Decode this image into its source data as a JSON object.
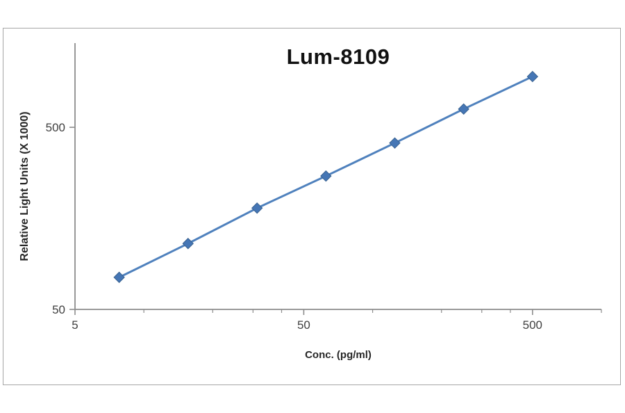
{
  "chart": {
    "title": "Lum-8109",
    "x_axis_label": "Conc. (pg/ml)",
    "y_axis_label": "Relative Light Units (X 1000)"
  },
  "chart_data": {
    "type": "line",
    "title": "Lum-8109",
    "xlabel": "Conc. (pg/ml)",
    "ylabel": "Relative Light Units (X 1000)",
    "x_scale": "log",
    "y_scale": "log",
    "x": [
      7.8,
      15.6,
      31.25,
      62.5,
      125,
      250,
      500
    ],
    "y": [
      75,
      115,
      180,
      270,
      410,
      630,
      950
    ],
    "xlim": [
      5,
      1000
    ],
    "ylim": [
      50,
      1450
    ],
    "x_major_ticks": [
      5,
      50,
      500
    ],
    "x_tick_labels": [
      "5",
      "50",
      "500"
    ],
    "x_minor_ticks": [
      10,
      20,
      30,
      40,
      100,
      200,
      300,
      400,
      1000
    ],
    "y_major_ticks": [
      50,
      500
    ],
    "y_tick_labels": [
      "50",
      "500"
    ],
    "grid": false,
    "legend": false,
    "marker": "diamond",
    "line_color": "#4f81bd",
    "marker_color": "#4576b5",
    "marker_edge_color": "#38618f",
    "axis_color": "#8c8c8c",
    "tick_label_color": "#3f3f3f"
  }
}
